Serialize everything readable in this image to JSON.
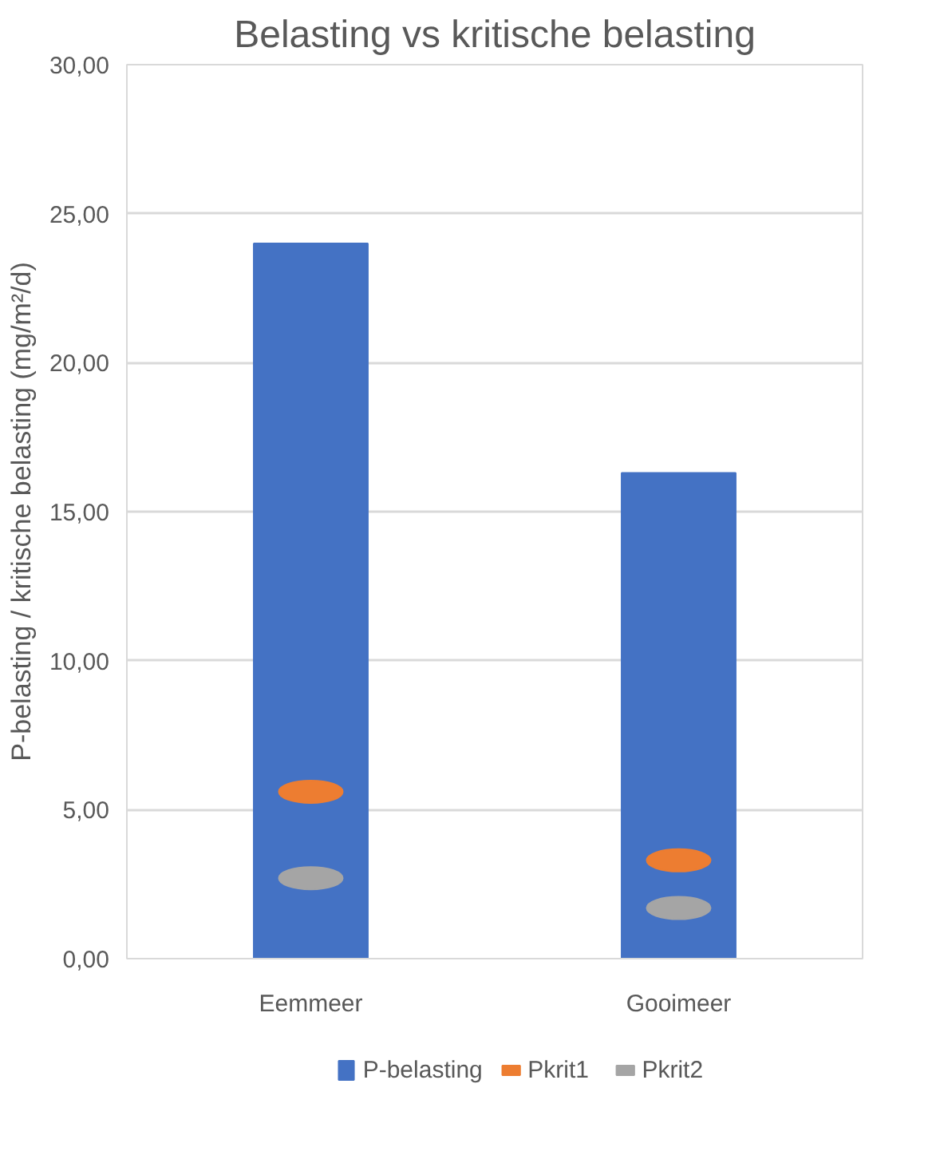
{
  "chart_data": {
    "type": "bar",
    "title": "Belasting vs kritische belasting",
    "ylabel": "P-belasting / kritische belasting (mg/m²/d)",
    "categories": [
      "Eemmeer",
      "Gooimeer"
    ],
    "series": [
      {
        "name": "P-belasting",
        "color": "#4472c4",
        "values": [
          24.0,
          16.3
        ]
      },
      {
        "name": "Pkrit1",
        "color": "#ed7d31",
        "type": "scatter",
        "values": [
          5.6,
          3.3
        ]
      },
      {
        "name": "Pkrit2",
        "color": "#a5a5a5",
        "type": "scatter",
        "values": [
          2.7,
          1.7
        ]
      }
    ],
    "ylim": [
      0,
      30
    ],
    "yticks": [
      {
        "value": 0,
        "label": "0,00"
      },
      {
        "value": 5,
        "label": "5,00"
      },
      {
        "value": 10,
        "label": "10,00"
      },
      {
        "value": 15,
        "label": "15,00"
      },
      {
        "value": 20,
        "label": "20,00"
      },
      {
        "value": 25,
        "label": "25,00"
      },
      {
        "value": 30,
        "label": "30,00"
      }
    ],
    "grid": "y",
    "legend": "bottom"
  }
}
